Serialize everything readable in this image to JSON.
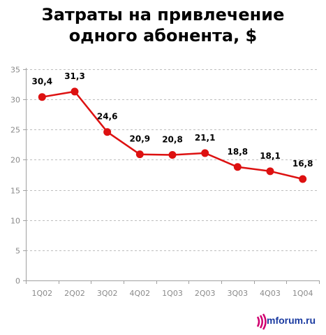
{
  "title_line1": "Затраты на привлечение",
  "title_line2": "одного абонента, $",
  "logo": {
    "text": "mforum.ru",
    "icon": "signal-waves-icon",
    "color": "#d0006f"
  },
  "colors": {
    "series": "#dd1111",
    "grid": "#bdbdbd",
    "axis": "#a0a0a0",
    "tick_text": "#8a8a8a"
  },
  "chart_data": {
    "type": "line",
    "categories": [
      "1Q02",
      "2Q02",
      "3Q02",
      "4Q02",
      "1Q03",
      "2Q03",
      "3Q03",
      "4Q03",
      "1Q04"
    ],
    "values": [
      30.4,
      31.3,
      24.6,
      20.9,
      20.8,
      21.1,
      18.8,
      18.1,
      16.8
    ],
    "value_labels": [
      "30,4",
      "31,3",
      "24,6",
      "20,9",
      "20,8",
      "21,1",
      "18,8",
      "18,1",
      "16,8"
    ],
    "yticks": [
      0,
      5,
      10,
      15,
      20,
      25,
      30,
      35
    ],
    "ylim": [
      0,
      35
    ],
    "grid": true
  }
}
